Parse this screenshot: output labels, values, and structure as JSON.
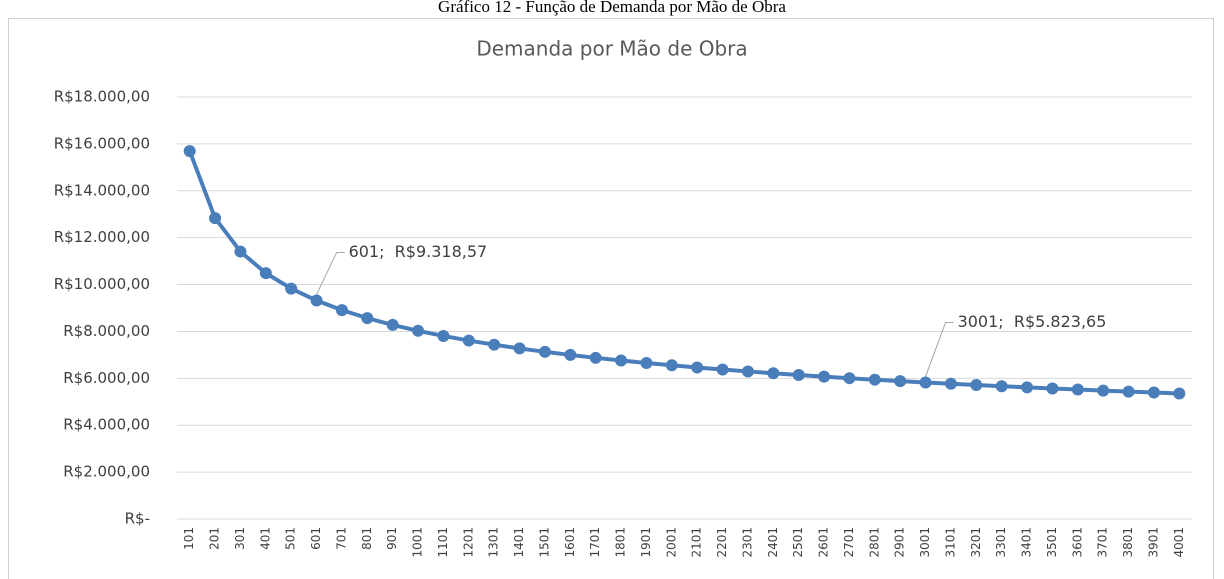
{
  "caption": "Gráfico 12 - Função de Demanda por Mão de Obra",
  "chart_data": {
    "type": "line",
    "title": "Demanda por Mão de Obra",
    "categories": [
      "101",
      "201",
      "301",
      "401",
      "501",
      "601",
      "701",
      "801",
      "901",
      "1001",
      "1101",
      "1201",
      "1301",
      "1401",
      "1501",
      "1601",
      "1701",
      "1801",
      "1901",
      "2001",
      "2101",
      "2201",
      "2301",
      "2401",
      "2501",
      "2601",
      "2701",
      "2801",
      "2901",
      "3001",
      "3101",
      "3201",
      "3301",
      "3401",
      "3501",
      "3601",
      "3701",
      "3801",
      "3901",
      "4001"
    ],
    "values": [
      15693,
      12835,
      11407,
      10487,
      9828,
      9318.57,
      8909,
      8568,
      8278,
      8028,
      7807,
      7611,
      7435,
      7276,
      7131,
      6998,
      6875,
      6761,
      6656,
      6556,
      6464,
      6376,
      6294,
      6216,
      6143,
      6073,
      6006,
      5942,
      5882,
      5823.65,
      5768,
      5715,
      5663,
      5614,
      5567,
      5522,
      5478,
      5435,
      5394,
      5352
    ],
    "value_labels": [
      null,
      null,
      null,
      null,
      null,
      "601;  R$9.318,57",
      null,
      null,
      null,
      null,
      null,
      null,
      null,
      null,
      null,
      null,
      null,
      null,
      null,
      null,
      null,
      null,
      null,
      null,
      null,
      null,
      null,
      null,
      null,
      "3001;  R$5.823,65",
      null,
      null,
      null,
      null,
      null,
      null,
      null,
      null,
      null,
      null
    ],
    "color": "#4a7ebb",
    "ylim": [
      0,
      18000
    ],
    "yticks": [
      {
        "value": 0,
        "label": "R$-"
      },
      {
        "value": 2000,
        "label": "R$2.000,00"
      },
      {
        "value": 4000,
        "label": "R$4.000,00"
      },
      {
        "value": 6000,
        "label": "R$6.000,00"
      },
      {
        "value": 8000,
        "label": "R$8.000,00"
      },
      {
        "value": 10000,
        "label": "R$10.000,00"
      },
      {
        "value": 12000,
        "label": "R$12.000,00"
      },
      {
        "value": 14000,
        "label": "R$14.000,00"
      },
      {
        "value": 16000,
        "label": "R$16.000,00"
      },
      {
        "value": 18000,
        "label": "R$18.000,00"
      }
    ],
    "grid": true
  }
}
